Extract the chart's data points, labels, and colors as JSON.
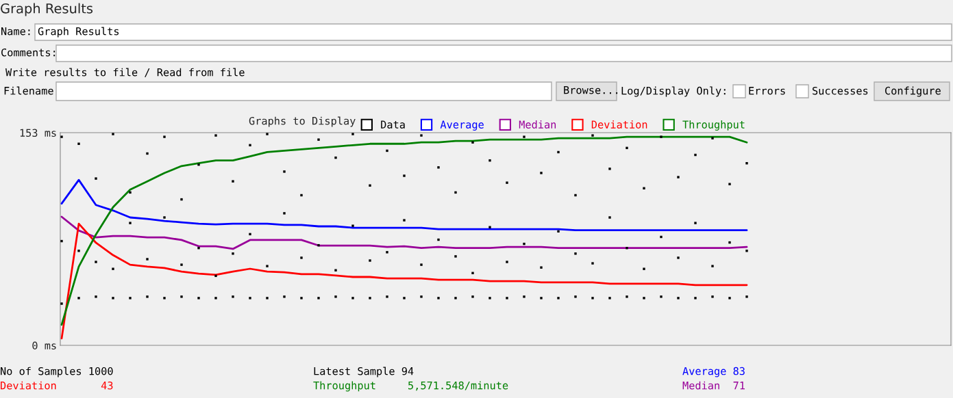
{
  "chart_data": {
    "type": "line",
    "title": "Graph Results",
    "legend_title": "Graphs to Display",
    "categories": [
      null,
      null,
      null,
      null,
      null,
      null,
      null,
      null,
      null,
      null,
      null,
      null,
      null,
      null,
      null,
      null,
      null,
      null,
      null,
      null,
      null,
      null,
      null,
      null,
      null,
      null,
      null,
      null,
      null,
      null,
      null,
      null,
      null,
      null,
      null,
      null,
      null,
      null,
      null,
      null,
      null
    ],
    "series": [
      {
        "name": "Data",
        "type": "scatter",
        "color": "#000000",
        "values": [
          30,
          34,
          35,
          34,
          34,
          35,
          34,
          35,
          34,
          34,
          35,
          34,
          34,
          35,
          34,
          34,
          35,
          34,
          34,
          35,
          34,
          35,
          34,
          34,
          35,
          34,
          34,
          35,
          34,
          34,
          35,
          34,
          34,
          35,
          34,
          35,
          34,
          34,
          35,
          34,
          35
        ]
      },
      {
        "type": "scatter",
        "color": "#000000",
        "values": [
          75,
          68,
          60,
          55,
          88,
          62,
          92,
          58,
          70,
          50,
          66,
          80,
          57,
          95,
          63,
          72,
          54,
          86,
          61,
          67,
          90,
          58,
          76,
          64,
          52,
          85,
          60,
          73,
          56,
          82,
          66,
          59,
          92,
          70,
          55,
          78,
          63,
          88,
          57,
          74,
          68
        ]
      },
      {
        "type": "scatter",
        "color": "#000000",
        "values": [
          150,
          145,
          120,
          152,
          110,
          138,
          150,
          105,
          130,
          151,
          118,
          144,
          152,
          125,
          108,
          148,
          135,
          152,
          115,
          140,
          122,
          151,
          128,
          110,
          146,
          133,
          117,
          150,
          124,
          139,
          108,
          151,
          127,
          142,
          113,
          150,
          121,
          137,
          149,
          116,
          131
        ]
      },
      {
        "name": "Average",
        "color": "#0000ff",
        "values": [
          102,
          119,
          101,
          97,
          92,
          91,
          89.5,
          88.5,
          87.5,
          87,
          87.5,
          87.5,
          87.5,
          86.6,
          86.6,
          85.6,
          85.6,
          84.6,
          84.6,
          84.6,
          84.6,
          84.6,
          83.6,
          83.6,
          83.6,
          83.6,
          83.6,
          83.6,
          83.6,
          83.6,
          82.8,
          82.8,
          82.8,
          82.8,
          82.8,
          82.8,
          82.8,
          82.8,
          82.8,
          82.8,
          82.8
        ]
      },
      {
        "name": "Median",
        "color": "#990099",
        "values": [
          92.5,
          82.6,
          77.7,
          78.7,
          78.7,
          77.7,
          77.7,
          75.8,
          71.3,
          71.3,
          69.4,
          75.8,
          75.8,
          75.8,
          75.8,
          71.8,
          71.8,
          71.8,
          71.8,
          70.8,
          71.3,
          70,
          70.8,
          70,
          70,
          70,
          70.8,
          70.8,
          70.8,
          70,
          70,
          70,
          70,
          70,
          70,
          70,
          70,
          70,
          70,
          70,
          70.8
        ]
      },
      {
        "name": "Deviation",
        "color": "#ff0000",
        "values": [
          5,
          87.5,
          73.8,
          64.9,
          58,
          56.6,
          55.6,
          53.1,
          51.6,
          50.7,
          53.1,
          55.1,
          53.1,
          52.6,
          51.2,
          51.2,
          50.2,
          49.2,
          49.2,
          48.2,
          48.2,
          48.2,
          47.2,
          47.2,
          47.2,
          46.2,
          46.2,
          46.2,
          45.3,
          45.3,
          45.3,
          45.3,
          44.3,
          44.3,
          44.3,
          44.3,
          44.3,
          43.4,
          43.4,
          43.4,
          43.4
        ]
      },
      {
        "name": "Throughput",
        "color": "#008000",
        "values": [
          14.8,
          56.6,
          79.7,
          99.4,
          112,
          118,
          124,
          129,
          131,
          133,
          133,
          136,
          139,
          140,
          141,
          142,
          143,
          144,
          145,
          145,
          145,
          146,
          146,
          147,
          147,
          148,
          148,
          148,
          148,
          149,
          149,
          149,
          149,
          150,
          150,
          150,
          150,
          150,
          150,
          150,
          146
        ]
      }
    ],
    "ylim": [
      0,
      153
    ],
    "yticks": [
      {
        "value": 0,
        "label": "0 ms"
      },
      {
        "value": 153,
        "label": "153 ms"
      }
    ],
    "tick_labels": "y",
    "grid": false,
    "legend": "top",
    "line_style": "solid",
    "annotations": [
      "Name:",
      "Graph Results",
      "Comments:",
      "Write results to file / Read from file",
      "Filename",
      "Browse...",
      "Log/Display Only:",
      "Errors",
      "Successes",
      "Configure",
      "No of Samples 1000",
      "Deviation       43",
      "Latest Sample 94",
      "Throughput     5,571.548/minute",
      "Average 83",
      "Median  71"
    ]
  }
}
